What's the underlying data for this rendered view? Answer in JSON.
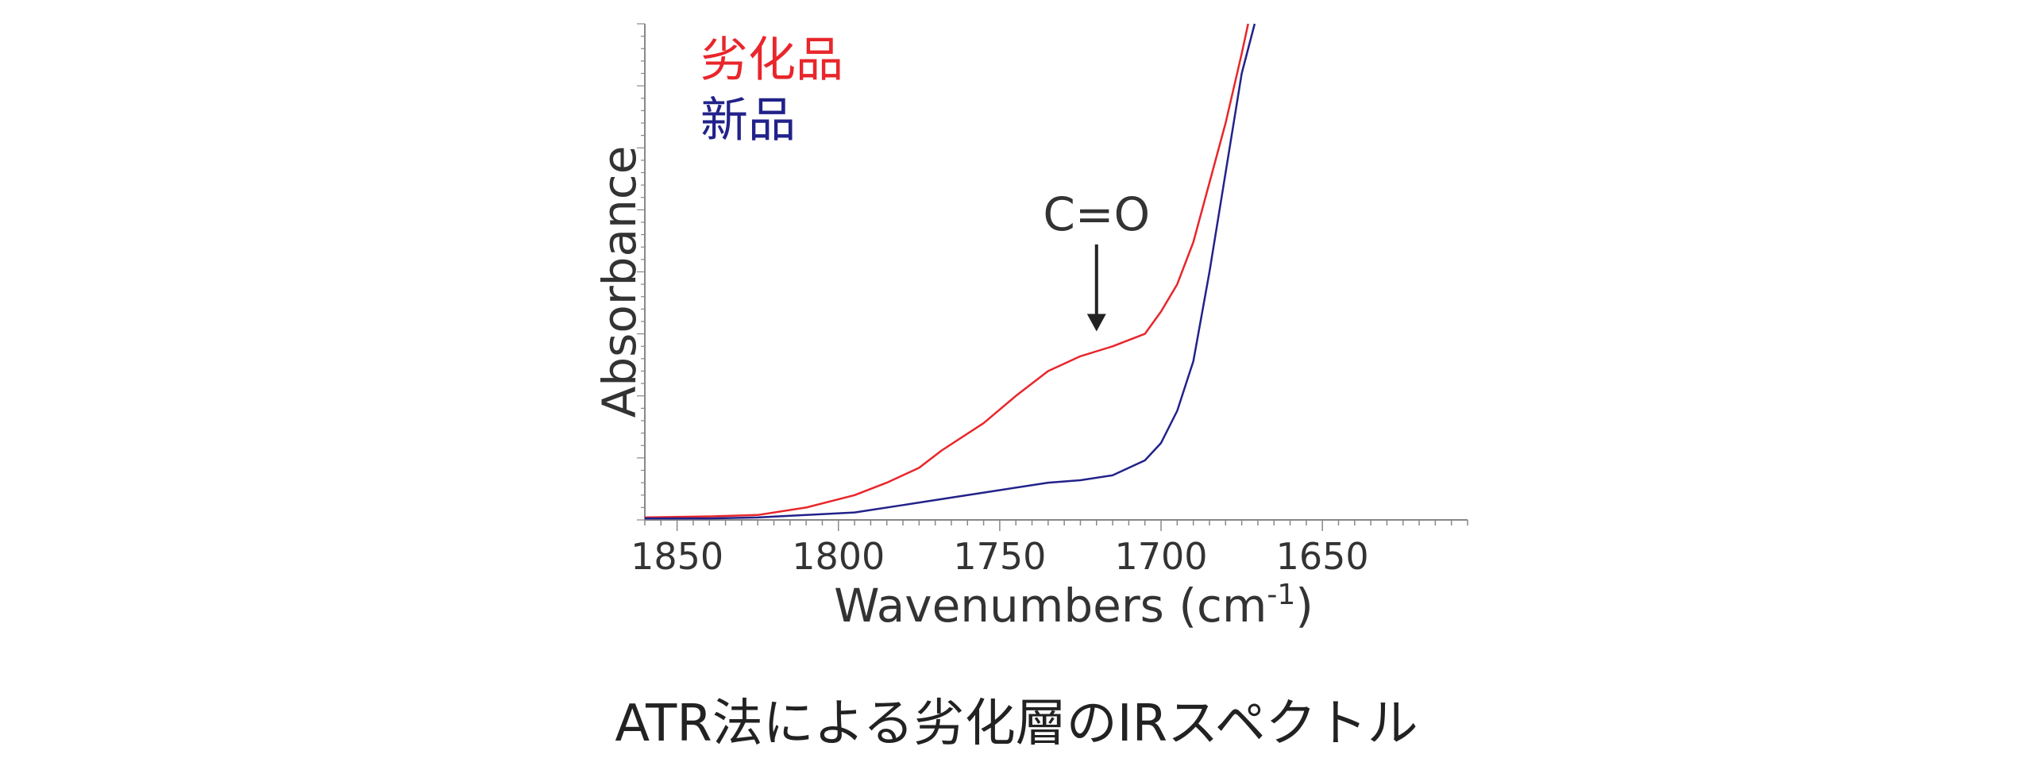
{
  "caption": "ATR法による劣化層のIRスペクトル",
  "chart_data": {
    "type": "line",
    "ylabel": "Absorbance",
    "xlabel_main": "Wavenumbers (cm",
    "xlabel_sup": "-1",
    "xlabel_end": ")",
    "xlim": [
      1860,
      1605
    ],
    "ylim": [
      0,
      1
    ],
    "x_ticks": [
      1850,
      1800,
      1750,
      1700,
      1650
    ],
    "y_ticks_shown": false,
    "grid": false,
    "legend_position": "top-left",
    "annotation": {
      "text": "C=O",
      "x": 1720,
      "y_tip": 0.38
    },
    "series": [
      {
        "name": "劣化品",
        "color": "#e8262b",
        "x": [
          1860,
          1840,
          1825,
          1810,
          1795,
          1785,
          1775,
          1768,
          1755,
          1745,
          1735,
          1725,
          1715,
          1705,
          1700,
          1695,
          1690,
          1685,
          1680,
          1675,
          1673
        ],
        "y": [
          0.005,
          0.007,
          0.01,
          0.025,
          0.05,
          0.075,
          0.105,
          0.14,
          0.195,
          0.25,
          0.3,
          0.33,
          0.35,
          0.375,
          0.42,
          0.475,
          0.56,
          0.68,
          0.8,
          0.94,
          1.0
        ]
      },
      {
        "name": "新品",
        "color": "#22228a",
        "x": [
          1860,
          1840,
          1825,
          1810,
          1795,
          1780,
          1765,
          1750,
          1735,
          1725,
          1715,
          1705,
          1700,
          1695,
          1690,
          1685,
          1680,
          1675,
          1671
        ],
        "y": [
          0.003,
          0.003,
          0.005,
          0.01,
          0.015,
          0.03,
          0.045,
          0.06,
          0.075,
          0.08,
          0.09,
          0.12,
          0.155,
          0.22,
          0.32,
          0.5,
          0.7,
          0.9,
          1.0
        ]
      }
    ]
  }
}
